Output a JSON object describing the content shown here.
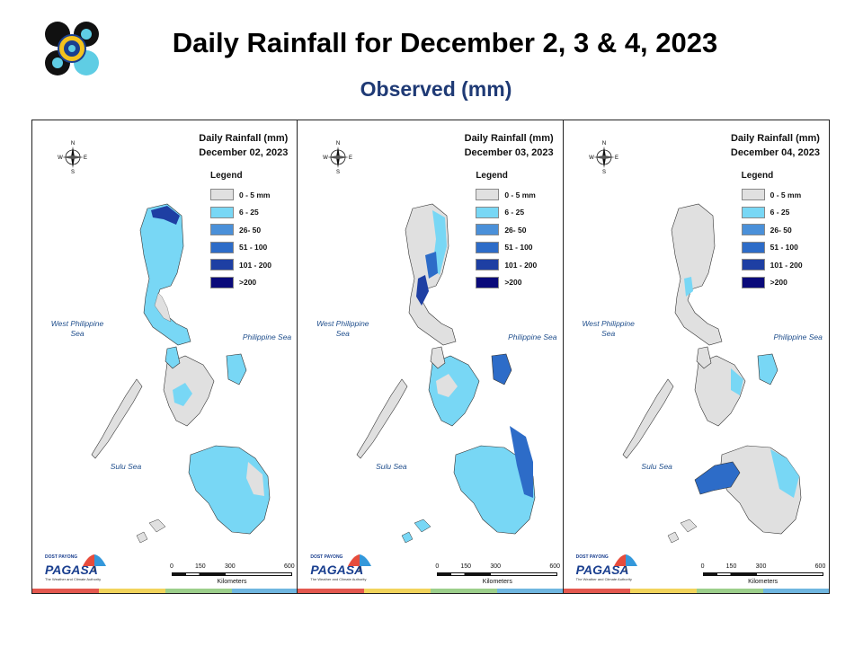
{
  "title": "Daily Rainfall for December 2, 3 & 4, 2023",
  "subtitle": "Observed (mm)",
  "colors": {
    "c0": "#e0e0e0",
    "c1": "#78d7f5",
    "c2": "#4a90d9",
    "c3": "#2d6cc8",
    "c4": "#1e3fa3",
    "c5": "#0a0a7a",
    "title_blue": "#1f3a75"
  },
  "compass_letters": [
    "N",
    "E",
    "S",
    "W"
  ],
  "panels": [
    {
      "map_title": "Daily Rainfall (mm)",
      "date": "December 02, 2023",
      "legend_title": "Legend",
      "legend": [
        "0 - 5 mm",
        "6 - 25",
        "26- 50",
        "51 - 100",
        "101 - 200",
        ">200"
      ],
      "seas": {
        "west": "West Philippine Sea",
        "philippine": "Philippine Sea",
        "sulu": "Sulu Sea"
      },
      "scale": {
        "ticks": [
          "0",
          "150",
          "300",
          "600"
        ],
        "unit": "Kilometers"
      },
      "logo_text": "PAGASA",
      "logo_small": "DOST PAYONG",
      "logo_tagline": "The Weather and Climate Authority"
    },
    {
      "map_title": "Daily Rainfall (mm)",
      "date": "December 03, 2023",
      "legend_title": "Legend",
      "legend": [
        "0 - 5 mm",
        "6 - 25",
        "26- 50",
        "51 - 100",
        "101 - 200",
        ">200"
      ],
      "seas": {
        "west": "West Philippine Sea",
        "philippine": "Philippine Sea",
        "sulu": "Sulu Sea"
      },
      "scale": {
        "ticks": [
          "0",
          "150",
          "300",
          "600"
        ],
        "unit": "Kilometers"
      },
      "logo_text": "PAGASA",
      "logo_small": "DOST PAYONG",
      "logo_tagline": "The Weather and Climate Authority"
    },
    {
      "map_title": "Daily Rainfall (mm)",
      "date": "December 04, 2023",
      "legend_title": "Legend",
      "legend": [
        "0 - 5 mm",
        "6 - 25",
        "26- 50",
        "51 - 100",
        "101 - 200",
        ">200"
      ],
      "seas": {
        "west": "West Philippine Sea",
        "philippine": "Philippine Sea",
        "sulu": "Sulu Sea"
      },
      "scale": {
        "ticks": [
          "0",
          "150",
          "300",
          "600"
        ],
        "unit": "Kilometers"
      },
      "logo_text": "PAGASA",
      "logo_small": "DOST PAYONG",
      "logo_tagline": "The Weather and Climate Authority"
    }
  ]
}
